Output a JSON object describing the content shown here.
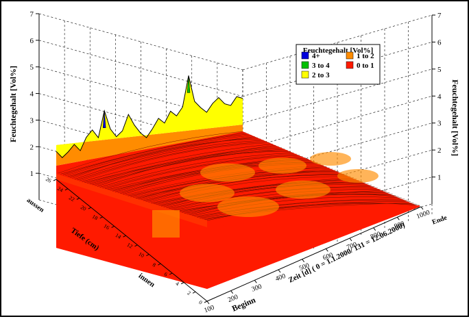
{
  "chart_data": {
    "type": "area",
    "subtype": "3d-waterfall-surface",
    "zlabel_left": "Feuchtegehalt [Vol%]",
    "zlabel_right": "Feuchtegehalt [Vol%]",
    "xlabel": "Zeit [d] ( 0 = 1.1.2000/ 131 = 12.06.2000)",
    "x_start_label": "Beginn",
    "x_end_label": "Ende",
    "ylabel": "Tiefe (cm)",
    "y_top_label": "aussen",
    "y_bottom_label": "innen",
    "z_ticks": [
      "7",
      "6",
      "5",
      "4",
      "3",
      "2",
      "1"
    ],
    "x_ticks": [
      "100",
      "200",
      "300",
      "400",
      "500",
      "600",
      "700",
      "800",
      "900",
      "1000"
    ],
    "y_ticks": [
      "0",
      "2",
      "4",
      "6",
      "8",
      "10",
      "12",
      "14",
      "16",
      "18",
      "20",
      "22",
      "24",
      "26"
    ],
    "zlim": [
      0,
      7
    ],
    "grid": true,
    "legend_position": "top-right",
    "legend": {
      "title": "Feuchtegehalt [Vol%]",
      "items": [
        {
          "label": "4+",
          "color": "#0000dd"
        },
        {
          "label": "1 to 2",
          "color": "#ff8c00"
        },
        {
          "label": "3 to 4",
          "color": "#00c000"
        },
        {
          "label": "0 to 1",
          "color": "#ff1a00"
        },
        {
          "label": "2 to 3",
          "color": "#ffff00"
        }
      ]
    },
    "series": [
      {
        "values": [
          2.9,
          2.4,
          2.7,
          3.1,
          2.6,
          3.4,
          3.8,
          3.2,
          4.9,
          3.6,
          3.0,
          3.3,
          4.3,
          3.5,
          2.9,
          2.5,
          3.0,
          3.6,
          3.2,
          3.9,
          3.5,
          4.0,
          6.0,
          4.2,
          3.7,
          3.3,
          3.8,
          4.1,
          3.6,
          3.4,
          3.9,
          3.7
        ]
      }
    ]
  }
}
